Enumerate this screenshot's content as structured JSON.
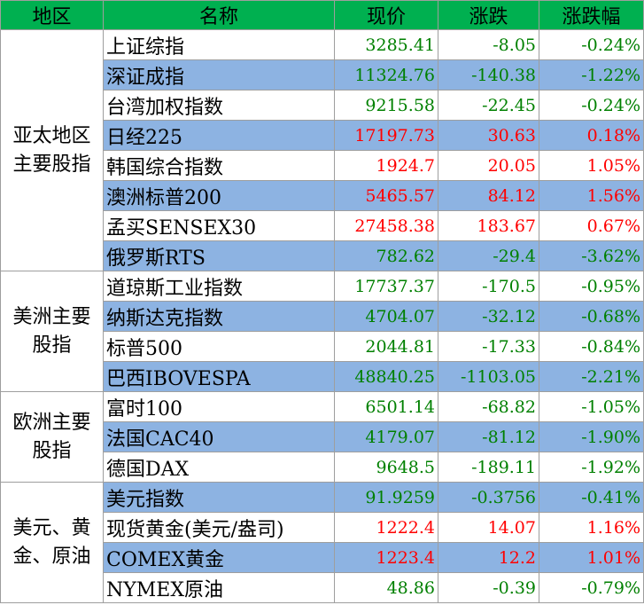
{
  "header": {
    "region": "地区",
    "name": "名称",
    "price": "现价",
    "change": "涨跌",
    "pct": "涨跌幅"
  },
  "colors": {
    "header_bg": "#00b050",
    "alt_row_bg": "#8db3e2",
    "up": "#ff0000",
    "down": "#008000"
  },
  "groups": [
    {
      "region_lines": [
        "亚太地区",
        "主要股指"
      ],
      "rows": [
        {
          "name": "上证综指",
          "price": "3285.41",
          "change": "-8.05",
          "pct": "-0.24%",
          "dir": "down"
        },
        {
          "name": "深证成指",
          "price": "11324.76",
          "change": "-140.38",
          "pct": "-1.22%",
          "dir": "down"
        },
        {
          "name": "台湾加权指数",
          "price": "9215.58",
          "change": "-22.45",
          "pct": "-0.24%",
          "dir": "down"
        },
        {
          "name": "日经225",
          "price": "17197.73",
          "change": "30.63",
          "pct": "0.18%",
          "dir": "up"
        },
        {
          "name": "韩国综合指数",
          "price": "1924.7",
          "change": "20.05",
          "pct": "1.05%",
          "dir": "up"
        },
        {
          "name": "澳洲标普200",
          "price": "5465.57",
          "change": "84.12",
          "pct": "1.56%",
          "dir": "up"
        },
        {
          "name": "孟买SENSEX30",
          "price": "27458.38",
          "change": "183.67",
          "pct": "0.67%",
          "dir": "up"
        },
        {
          "name": "俄罗斯RTS",
          "price": "782.62",
          "change": "-29.4",
          "pct": "-3.62%",
          "dir": "down"
        }
      ]
    },
    {
      "region_lines": [
        "美洲主要",
        "股指"
      ],
      "rows": [
        {
          "name": "道琼斯工业指数",
          "price": "17737.37",
          "change": "-170.5",
          "pct": "-0.95%",
          "dir": "down"
        },
        {
          "name": "纳斯达克指数",
          "price": "4704.07",
          "change": "-32.12",
          "pct": "-0.68%",
          "dir": "down"
        },
        {
          "name": "标普500",
          "price": "2044.81",
          "change": "-17.33",
          "pct": "-0.84%",
          "dir": "down"
        },
        {
          "name": "巴西IBOVESPA",
          "price": "48840.25",
          "change": "-1103.05",
          "pct": "-2.21%",
          "dir": "down"
        }
      ]
    },
    {
      "region_lines": [
        "欧洲主要",
        "股指"
      ],
      "rows": [
        {
          "name": "富时100",
          "price": "6501.14",
          "change": "-68.82",
          "pct": "-1.05%",
          "dir": "down"
        },
        {
          "name": "法国CAC40",
          "price": "4179.07",
          "change": "-81.12",
          "pct": "-1.90%",
          "dir": "down"
        },
        {
          "name": "德国DAX",
          "price": "9648.5",
          "change": "-189.11",
          "pct": "-1.92%",
          "dir": "down"
        }
      ]
    },
    {
      "region_lines": [
        "美元、黄",
        "金、原油"
      ],
      "rows": [
        {
          "name": "美元指数",
          "price": "91.9259",
          "change": "-0.3756",
          "pct": "-0.41%",
          "dir": "down"
        },
        {
          "name": "现货黄金(美元/盎司)",
          "price": "1222.4",
          "change": "14.07",
          "pct": "1.16%",
          "dir": "up"
        },
        {
          "name": "COMEX黄金",
          "price": "1223.4",
          "change": "12.2",
          "pct": "1.01%",
          "dir": "up"
        },
        {
          "name": "NYMEX原油",
          "price": "48.86",
          "change": "-0.39",
          "pct": "-0.79%",
          "dir": "down"
        }
      ]
    }
  ]
}
